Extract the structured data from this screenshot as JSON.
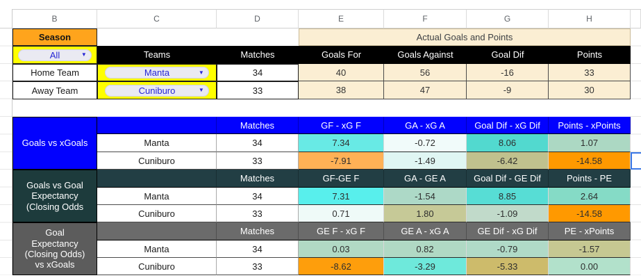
{
  "colors": {
    "season_bg": "#FFA41C",
    "filter_yellow": "#FFFF00",
    "cream": "#FBEED3",
    "dropdown_text": "#2525D6",
    "selection_blue": "#3B78E7"
  },
  "icons": {
    "dropdown_arrow": "▼"
  },
  "column_letters": [
    "B",
    "C",
    "D",
    "E",
    "F",
    "G",
    "H"
  ],
  "filter": {
    "season_label": "Season",
    "season_value": "All",
    "teams_header": "Teams",
    "matches_header": "Matches",
    "home": {
      "label": "Home Team",
      "team": "Manta",
      "matches": "34"
    },
    "away": {
      "label": "Away Team",
      "team": "Cuniburo",
      "matches": "33"
    }
  },
  "actual": {
    "title": "Actual Goals and Points",
    "headers": [
      "Goals For",
      "Goals Against",
      "Goal Dif",
      "Points"
    ],
    "home_values": [
      "40",
      "56",
      "-16",
      "33"
    ],
    "away_values": [
      "38",
      "47",
      "-9",
      "30"
    ]
  },
  "sections": [
    {
      "label": "Goals vs xGoals",
      "label_bg": "#0201FE",
      "header_bg": "#0201FE",
      "matches_header": "Matches",
      "headers": [
        "GF - xG F",
        "GA - xG A",
        "Goal Dif - xG Dif",
        "Points - xPoints"
      ],
      "rows": [
        {
          "team": "Manta",
          "matches": "34",
          "values": [
            "7.34",
            "-0.72",
            "8.06",
            "1.07"
          ],
          "cell_colors": [
            "#68EAE5",
            "#F1FBFA",
            "#52D9CF",
            "#ACD8C3"
          ]
        },
        {
          "team": "Cuniburo",
          "matches": "33",
          "values": [
            "-7.91",
            "-1.49",
            "-6.42",
            "-14.58"
          ],
          "cell_colors": [
            "#FFB156",
            "#E0F6F3",
            "#C0C18E",
            "#FF9900"
          ]
        }
      ]
    },
    {
      "label": "Goals vs Goal\nExpectancy\n(Closing Odds",
      "label_bg": "#1D3B3C",
      "header_bg": "#223E44",
      "matches_header": "Matches",
      "headers": [
        "GF-GE F",
        "GA - GE A",
        "Goal Dif - GE Dif",
        "Points - PE"
      ],
      "rows": [
        {
          "team": "Manta",
          "matches": "34",
          "values": [
            "7.31",
            "-1.54",
            "8.85",
            "2.64"
          ],
          "cell_colors": [
            "#58EFEC",
            "#ADD9C7",
            "#57DDD5",
            "#85DBC6"
          ]
        },
        {
          "team": "Cuniburo",
          "matches": "33",
          "values": [
            "0.71",
            "1.80",
            "-1.09",
            "-14.58"
          ],
          "cell_colors": [
            "#EFFAF8",
            "#C6C997",
            "#C1DACA",
            "#FF9900"
          ]
        }
      ]
    },
    {
      "label": "Goal\nExpectancy\n(Closing Odds)\nvs xGoals",
      "label_bg": "#5C5C5C",
      "header_bg": "#6B6B6B",
      "matches_header": "Matches",
      "headers": [
        "GE F - xG F",
        "GE A - xG A",
        "GE Dif - xG Dif",
        "PE - xPoints"
      ],
      "rows": [
        {
          "team": "Manta",
          "matches": "34",
          "values": [
            "0.03",
            "0.82",
            "-0.79",
            "-1.57"
          ],
          "cell_colors": [
            "#B1D9C4",
            "#B0D9C4",
            "#B0DAC7",
            "#C6C892"
          ]
        },
        {
          "team": "Cuniburo",
          "matches": "33",
          "values": [
            "-8.62",
            "-3.29",
            "-5.33",
            "0.00"
          ],
          "cell_colors": [
            "#FE9E0C",
            "#6EE9DB",
            "#CDBB6B",
            "#B2E1CB"
          ]
        }
      ]
    }
  ]
}
